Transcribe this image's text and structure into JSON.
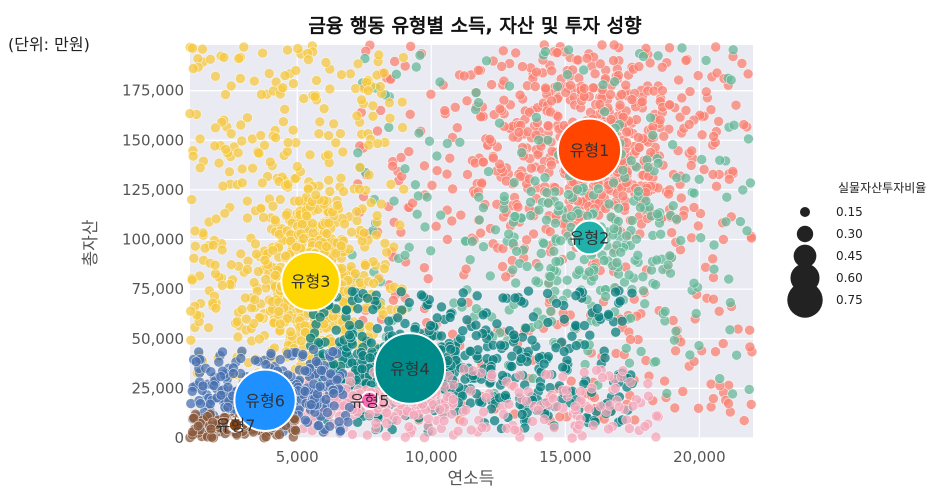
{
  "chart_data": {
    "type": "scatter",
    "title": "금융 행동 유형별 소득, 자산 및 투자 성향",
    "unit_note": "(단위: 만원)",
    "xlabel": "연소득",
    "ylabel": "총자산",
    "xlim": [
      1000,
      22000
    ],
    "ylim": [
      0,
      198000
    ],
    "x_ticks": [
      5000,
      10000,
      15000,
      20000
    ],
    "x_tick_labels": [
      "5,000",
      "10,000",
      "15,000",
      "20,000"
    ],
    "y_ticks": [
      0,
      25000,
      50000,
      75000,
      100000,
      125000,
      150000,
      175000
    ],
    "y_tick_labels": [
      "0",
      "25,000",
      "50,000",
      "75,000",
      "100,000",
      "125,000",
      "150,000",
      "175,000"
    ],
    "grid": true,
    "background": "#eaeaf2",
    "clusters": [
      {
        "name": "유형1",
        "x": 15900,
        "y": 145000,
        "ratio": 0.6,
        "centroid_color": "#ff4500",
        "point_color": "#fa8072",
        "spread": {
          "x_min": 7200,
          "x_max": 22000,
          "y_min": 8000,
          "y_max": 198000
        },
        "count": 900
      },
      {
        "name": "유형2",
        "x": 15900,
        "y": 101000,
        "ratio": 0.28,
        "centroid_color": "#20b2aa",
        "point_color": "#66b89a",
        "spread": {
          "x_min": 7000,
          "x_max": 22000,
          "y_min": 15000,
          "y_max": 198000
        },
        "count": 380
      },
      {
        "name": "유형3",
        "x": 5500,
        "y": 79000,
        "ratio": 0.55,
        "centroid_color": "#ffd700",
        "point_color": "#f5c842",
        "spread": {
          "x_min": 1000,
          "x_max": 9000,
          "y_min": 30000,
          "y_max": 198000
        },
        "count": 850
      },
      {
        "name": "유형4",
        "x": 9200,
        "y": 35000,
        "ratio": 0.68,
        "centroid_color": "#008b8b",
        "point_color": "#0b7f7f",
        "spread": {
          "x_min": 5500,
          "x_max": 17500,
          "y_min": 3000,
          "y_max": 75000
        },
        "count": 750
      },
      {
        "name": "유형5",
        "x": 7700,
        "y": 19000,
        "ratio": 0.1,
        "centroid_color": "#ff69b4",
        "point_color": "#f4a7b9",
        "spread": {
          "x_min": 5000,
          "x_max": 18500,
          "y_min": 0,
          "y_max": 35000
        },
        "count": 350
      },
      {
        "name": "유형6",
        "x": 3800,
        "y": 19000,
        "ratio": 0.58,
        "centroid_color": "#1e90ff",
        "point_color": "#4a72b0",
        "spread": {
          "x_min": 1000,
          "x_max": 7000,
          "y_min": 3000,
          "y_max": 45000
        },
        "count": 500
      },
      {
        "name": "유형7",
        "x": 2700,
        "y": 6500,
        "ratio": 0.06,
        "centroid_color": "#8b4513",
        "point_color": "#8b5a3c",
        "spread": {
          "x_min": 1000,
          "x_max": 5000,
          "y_min": 0,
          "y_max": 12000
        },
        "count": 180
      }
    ],
    "legend": {
      "title": "실물자산투자비율",
      "placement": "right",
      "color": "#222222",
      "values": [
        0.15,
        0.3,
        0.45,
        0.6,
        0.75
      ],
      "labels": [
        "0.15",
        "0.30",
        "0.45",
        "0.60",
        "0.75"
      ]
    }
  }
}
